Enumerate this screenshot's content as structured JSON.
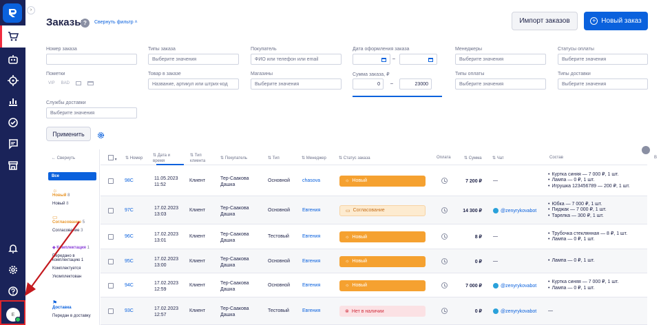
{
  "page": {
    "title": "Заказы",
    "filter_toggle": "Свернуть фильтр",
    "import_btn": "Импорт заказов",
    "new_btn": "Новый заказ",
    "apply_btn": "Применить"
  },
  "sidebar": {
    "avatar": "E",
    "icons": [
      "cart-icon",
      "robot-icon",
      "target-icon",
      "chart-icon",
      "check-circle-icon",
      "chat-icon",
      "store-icon",
      "bell-icon",
      "gear-icon",
      "help-icon"
    ]
  },
  "filters": {
    "order_no": {
      "label": "Номер заказа",
      "placeholder": ""
    },
    "order_types": {
      "label": "Типы заказа",
      "placeholder": "Выберите значения"
    },
    "buyer": {
      "label": "Покупатель",
      "placeholder": "ФИО или телефон или email"
    },
    "date": {
      "label": "Дата оформления заказа",
      "sep": "–"
    },
    "managers": {
      "label": "Менеджеры",
      "placeholder": "Выберите значения"
    },
    "pay_status": {
      "label": "Статусы оплаты",
      "placeholder": "Выберите значения"
    },
    "marks": {
      "label": "Пометки",
      "tags": [
        "VIP",
        "BAD"
      ]
    },
    "product": {
      "label": "Товар в заказе",
      "placeholder": "Название, артикул или штрих-код"
    },
    "shops": {
      "label": "Магазины",
      "placeholder": "Выберите значения"
    },
    "sum": {
      "label": "Сумма заказа, ₽",
      "from": "0",
      "sep": "–",
      "to": "23000"
    },
    "pay_types": {
      "label": "Типы оплаты",
      "placeholder": "Выберите значения"
    },
    "delivery_types": {
      "label": "Типы доставки",
      "placeholder": "Выберите значения"
    },
    "delivery_services": {
      "label": "Службы доставки",
      "placeholder": "Выберите значения"
    }
  },
  "groups": {
    "collapse": "← Свернуть",
    "all": "Все",
    "items": [
      {
        "title": "Новый",
        "count": "8",
        "sub": "Новый",
        "sub_count": "8",
        "color": "#e8962a"
      },
      {
        "title": "Согласование",
        "count": "5",
        "sub": "Согласование",
        "sub_count": "3",
        "color": "#e8962a"
      },
      {
        "title": "Комплектация",
        "count": "1",
        "subs": [
          "Передано в",
          "комплектацию 1",
          "Комплектуется",
          "Укомплектован"
        ],
        "color": "#8a3fd8"
      },
      {
        "title": "Доставка",
        "count": "",
        "sub": "Передан в доставку",
        "sub_count": "",
        "color": "#0a61dd"
      }
    ]
  },
  "columns": {
    "num": "Номер",
    "date": "Дата и время",
    "client_type": "Тип клиента",
    "buyer": "Покупатель",
    "type": "Тип",
    "manager": "Менеджер",
    "status": "Статус заказа",
    "pay": "Оплата",
    "sum": "Сумма",
    "chat": "Чат",
    "comp": "Состав",
    "more": "В"
  },
  "orders": [
    {
      "num": "98C",
      "date": "11.05.2023",
      "time": "11:52",
      "client": "Клиент",
      "buyer1": "Тер-Саакова",
      "buyer2": "Дашка",
      "type": "Основной",
      "manager": "chasova",
      "status": "Новый",
      "status_kind": "new",
      "sum": "7 200 ₽",
      "chat": "—",
      "comp": [
        "Куртка синяя — 7 000 ₽, 1 шт.",
        "Лампа — 0 ₽, 1 шт.",
        "Игрушка 123456789 — 200 ₽, 1 шт."
      ]
    },
    {
      "num": "97C",
      "date": "17.02.2023",
      "time": "13:03",
      "client": "Клиент",
      "buyer1": "Тер-Саакова",
      "buyer2": "Дашка",
      "type": "Основной",
      "manager": "Евгения",
      "status": "Согласование",
      "status_kind": "agree",
      "sum": "14 300 ₽",
      "chat": "@zenyrykovabot",
      "comp": [
        "Юбка — 7 000 ₽, 1 шт.",
        "Пиджак — 7 000 ₽, 1 шт.",
        "Тарелка — 300 ₽, 1 шт."
      ]
    },
    {
      "num": "96C",
      "date": "17.02.2023",
      "time": "13:01",
      "client": "Клиент",
      "buyer1": "Тер-Саакова",
      "buyer2": "Дашка",
      "type": "Тестовый",
      "manager": "Евгения",
      "status": "Новый",
      "status_kind": "new",
      "sum": "8 ₽",
      "chat": "—",
      "comp": [
        "Трубочка стеклянная — 8 ₽, 1 шт.",
        "Лампа — 0 ₽, 1 шт."
      ]
    },
    {
      "num": "95C",
      "date": "17.02.2023",
      "time": "13:00",
      "client": "Клиент",
      "buyer1": "Тер-Саакова",
      "buyer2": "Дашка",
      "type": "Основной",
      "manager": "Евгения",
      "status": "Новый",
      "status_kind": "new",
      "sum": "0 ₽",
      "chat": "—",
      "comp": [
        "Лампа — 0 ₽, 1 шт."
      ]
    },
    {
      "num": "94C",
      "date": "17.02.2023",
      "time": "12:59",
      "client": "Клиент",
      "buyer1": "Тер-Саакова",
      "buyer2": "Дашка",
      "type": "Основной",
      "manager": "Евгения",
      "status": "Новый",
      "status_kind": "new",
      "sum": "7 000 ₽",
      "chat": "@zenyrykovabot",
      "comp": [
        "Куртка синяя — 7 000 ₽, 1 шт.",
        "Лампа — 0 ₽, 1 шт."
      ]
    },
    {
      "num": "93C",
      "date": "17.02.2023",
      "time": "12:57",
      "client": "Клиент",
      "buyer1": "Тер-Саакова",
      "buyer2": "Дашка",
      "type": "Тестовый",
      "manager": "Евгения",
      "status": "Нет в наличии",
      "status_kind": "none",
      "sum": "0 ₽",
      "chat": "@zenyrykovabot",
      "comp": []
    }
  ]
}
